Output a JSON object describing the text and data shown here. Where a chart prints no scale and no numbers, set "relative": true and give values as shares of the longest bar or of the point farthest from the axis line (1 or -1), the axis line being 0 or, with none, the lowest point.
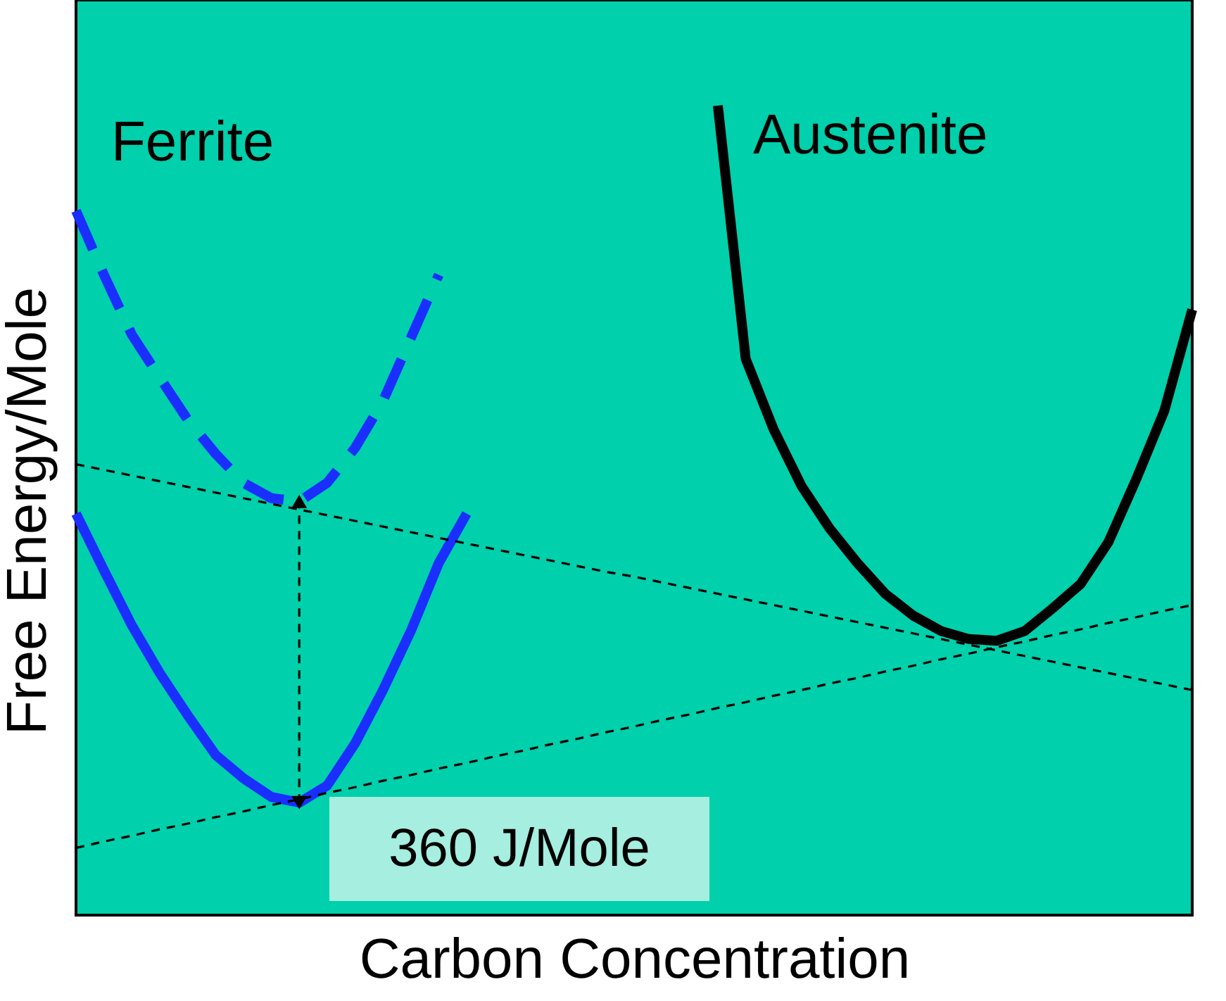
{
  "chart_data": {
    "type": "line",
    "relative": true,
    "xlabel": "Carbon Concentration",
    "ylabel": "Free Energy/Mole",
    "grid": false,
    "tick_labels": false,
    "categories": [
      null,
      null,
      null,
      null,
      null,
      null,
      null,
      null,
      null,
      null,
      null,
      null,
      null,
      null,
      null,
      null,
      null,
      null,
      null,
      null,
      null,
      null,
      null,
      null,
      null,
      null,
      null,
      null,
      null,
      null,
      null,
      null,
      null,
      null,
      null,
      null,
      null,
      null,
      null,
      null,
      null
    ],
    "annotations": [
      "360 J/Mole"
    ],
    "series": [
      {
        "color": "#1a2eff",
        "line_style": "solid",
        "values": [
          0.496,
          0.426,
          0.358,
          0.299,
          0.247,
          0.198,
          0.169,
          0.146,
          0.139,
          0.16,
          0.212,
          0.278,
          0.351,
          0.435,
          0.496,
          null,
          null,
          null,
          null,
          null,
          null,
          null,
          null,
          null,
          null,
          null,
          null,
          null,
          null,
          null,
          null,
          null,
          null,
          null,
          null,
          null,
          null,
          null,
          null,
          null,
          null
        ]
      },
      {
        "name": "Ferrite",
        "color": "#1a2eff",
        "line_style": "dashed",
        "values": [
          0.87,
          0.791,
          0.717,
          0.664,
          0.612,
          0.57,
          0.534,
          0.515,
          0.511,
          0.534,
          0.577,
          0.635,
          0.713,
          0.791,
          null,
          null,
          null,
          null,
          null,
          null,
          null,
          null,
          null,
          null,
          null,
          null,
          null,
          null,
          null,
          null,
          null,
          null,
          null,
          null,
          null,
          null,
          null,
          null,
          null,
          null,
          null
        ]
      },
      {
        "name": "Austenite",
        "color": "#000000",
        "line_style": "solid",
        "values": [
          null,
          null,
          null,
          null,
          null,
          null,
          null,
          null,
          null,
          null,
          null,
          null,
          null,
          null,
          null,
          null,
          null,
          null,
          null,
          null,
          null,
          null,
          null,
          1,
          0.687,
          0.6,
          0.53,
          0.478,
          0.435,
          0.397,
          0.37,
          0.351,
          0.341,
          0.339,
          0.351,
          0.379,
          0.409,
          0.461,
          0.539,
          0.623,
          0.748
        ]
      },
      {
        "color": "#000000",
        "line_style": "dotted",
        "values": [
          0.557,
          0.55,
          0.543,
          0.536,
          0.529,
          0.522,
          0.515,
          0.508,
          0.501,
          0.494,
          0.487,
          0.48,
          0.473,
          0.466,
          0.459,
          0.452,
          0.445,
          0.438,
          0.431,
          0.424,
          0.418,
          0.411,
          0.404,
          0.397,
          0.39,
          0.383,
          0.376,
          0.369,
          0.362,
          0.355,
          0.348,
          0.341,
          0.334,
          0.327,
          0.32,
          0.313,
          0.306,
          0.299,
          0.292,
          0.285,
          0.278
        ]
      },
      {
        "color": "#000000",
        "line_style": "dotted",
        "values": [
          0.083,
          0.091,
          0.098,
          0.106,
          0.113,
          0.121,
          0.128,
          0.136,
          0.143,
          0.151,
          0.158,
          0.166,
          0.173,
          0.181,
          0.188,
          0.196,
          0.203,
          0.211,
          0.218,
          0.226,
          0.233,
          0.241,
          0.248,
          0.256,
          0.263,
          0.271,
          0.278,
          0.286,
          0.293,
          0.301,
          0.308,
          0.316,
          0.323,
          0.331,
          0.338,
          0.346,
          0.353,
          0.361,
          0.368,
          0.376,
          0.383
        ]
      }
    ]
  }
}
